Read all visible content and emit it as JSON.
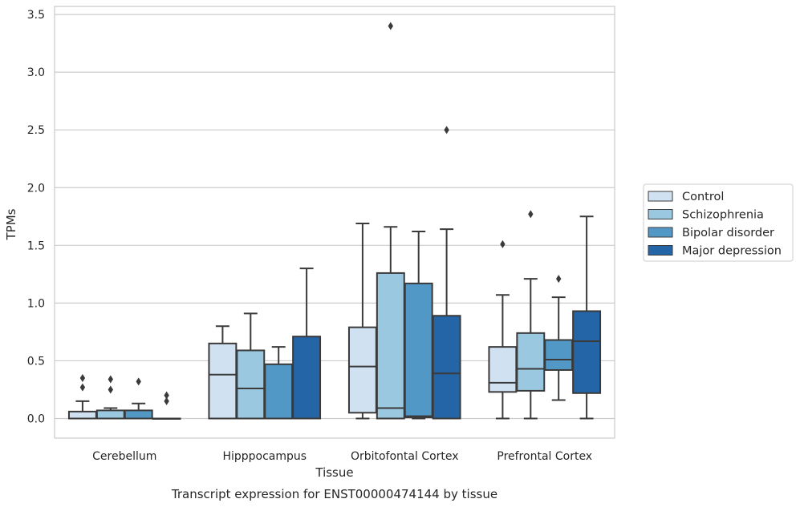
{
  "chart_data": {
    "type": "box",
    "title": "",
    "caption": "Transcript expression for ENST00000474144 by tissue",
    "xlabel": "Tissue",
    "ylabel": "TPMs",
    "ylim": [
      -0.17,
      3.57
    ],
    "yticks": [
      0.0,
      0.5,
      1.0,
      1.5,
      2.0,
      2.5,
      3.0,
      3.5
    ],
    "ytick_labels": [
      "0.0",
      "0.5",
      "1.0",
      "1.5",
      "2.0",
      "2.5",
      "3.0",
      "3.5"
    ],
    "grid": "horizontal",
    "legend_position": "right, outside plot",
    "categories": [
      "Cerebellum",
      "Hipppocampus",
      "Orbitofontal Cortex",
      "Prefrontal Cortex"
    ],
    "series": [
      {
        "name": "Control",
        "color": "#d0e2f2",
        "boxes": [
          {
            "whislo": 0.0,
            "q1": 0.0,
            "med": 0.0,
            "q3": 0.06,
            "whishi": 0.15,
            "fliers": [
              0.27,
              0.35
            ]
          },
          {
            "whislo": 0.0,
            "q1": 0.0,
            "med": 0.38,
            "q3": 0.65,
            "whishi": 0.8,
            "fliers": []
          },
          {
            "whislo": 0.0,
            "q1": 0.05,
            "med": 0.45,
            "q3": 0.79,
            "whishi": 1.69,
            "fliers": []
          },
          {
            "whislo": 0.0,
            "q1": 0.23,
            "med": 0.31,
            "q3": 0.62,
            "whishi": 1.07,
            "fliers": [
              1.51
            ]
          }
        ]
      },
      {
        "name": "Schizophrenia",
        "color": "#9ac8e0",
        "boxes": [
          {
            "whislo": 0.0,
            "q1": 0.0,
            "med": 0.0,
            "q3": 0.07,
            "whishi": 0.09,
            "fliers": [
              0.25,
              0.34
            ]
          },
          {
            "whislo": 0.0,
            "q1": 0.0,
            "med": 0.26,
            "q3": 0.59,
            "whishi": 0.91,
            "fliers": []
          },
          {
            "whislo": 0.0,
            "q1": 0.0,
            "med": 0.09,
            "q3": 1.26,
            "whishi": 1.66,
            "fliers": [
              3.4
            ]
          },
          {
            "whislo": 0.0,
            "q1": 0.24,
            "med": 0.43,
            "q3": 0.74,
            "whishi": 1.21,
            "fliers": [
              1.77
            ]
          }
        ]
      },
      {
        "name": "Bipolar disorder",
        "color": "#5298c6",
        "boxes": [
          {
            "whislo": 0.0,
            "q1": 0.0,
            "med": 0.0,
            "q3": 0.07,
            "whishi": 0.13,
            "fliers": [
              0.32
            ]
          },
          {
            "whislo": 0.0,
            "q1": 0.0,
            "med": 0.0,
            "q3": 0.47,
            "whishi": 0.62,
            "fliers": []
          },
          {
            "whislo": 0.0,
            "q1": 0.01,
            "med": 0.02,
            "q3": 1.17,
            "whishi": 1.62,
            "fliers": []
          },
          {
            "whislo": 0.16,
            "q1": 0.42,
            "med": 0.51,
            "q3": 0.68,
            "whishi": 1.05,
            "fliers": [
              1.21
            ]
          }
        ]
      },
      {
        "name": "Major depression",
        "color": "#2465a8",
        "boxes": [
          {
            "whislo": 0.0,
            "q1": 0.0,
            "med": 0.0,
            "q3": 0.0,
            "whishi": 0.0,
            "fliers": [
              0.15,
              0.2
            ]
          },
          {
            "whislo": 0.0,
            "q1": 0.0,
            "med": 0.0,
            "q3": 0.71,
            "whishi": 1.3,
            "fliers": []
          },
          {
            "whislo": 0.0,
            "q1": 0.0,
            "med": 0.39,
            "q3": 0.89,
            "whishi": 1.64,
            "fliers": [
              2.5
            ]
          },
          {
            "whislo": 0.0,
            "q1": 0.22,
            "med": 0.67,
            "q3": 0.93,
            "whishi": 1.75,
            "fliers": []
          }
        ]
      }
    ]
  }
}
